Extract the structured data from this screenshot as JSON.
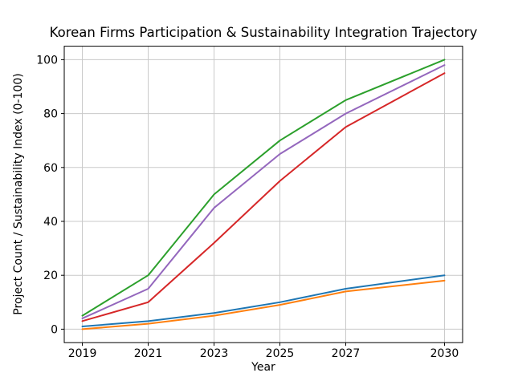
{
  "chart_data": {
    "type": "line",
    "title": "Korean Firms Participation & Sustainability Integration Trajectory",
    "xlabel": "Year",
    "ylabel": "Project Count / Sustainability Index (0-100)",
    "x": [
      2019,
      2021,
      2023,
      2025,
      2027,
      2030
    ],
    "series": [
      {
        "name": "series-blue",
        "color": "#1f77b4",
        "values": [
          1,
          3,
          6,
          10,
          15,
          20
        ]
      },
      {
        "name": "series-orange",
        "color": "#ff7f0e",
        "values": [
          0,
          2,
          5,
          9,
          14,
          18
        ]
      },
      {
        "name": "series-green",
        "color": "#2ca02c",
        "values": [
          5,
          20,
          50,
          70,
          85,
          100
        ]
      },
      {
        "name": "series-red",
        "color": "#d62728",
        "values": [
          3,
          10,
          32,
          55,
          75,
          95
        ]
      },
      {
        "name": "series-purple",
        "color": "#9467bd",
        "values": [
          4,
          15,
          45,
          65,
          80,
          98
        ]
      }
    ],
    "xticks": [
      2019,
      2021,
      2023,
      2025,
      2027,
      2030
    ],
    "yticks": [
      0,
      20,
      40,
      60,
      80,
      100
    ],
    "xlim": [
      2018.45,
      2030.55
    ],
    "ylim": [
      -5,
      105
    ],
    "grid": true,
    "legend": "none",
    "colors": {
      "background": "#ffffff",
      "grid": "#c9c9c9",
      "spine": "#000000",
      "text": "#000000"
    }
  }
}
